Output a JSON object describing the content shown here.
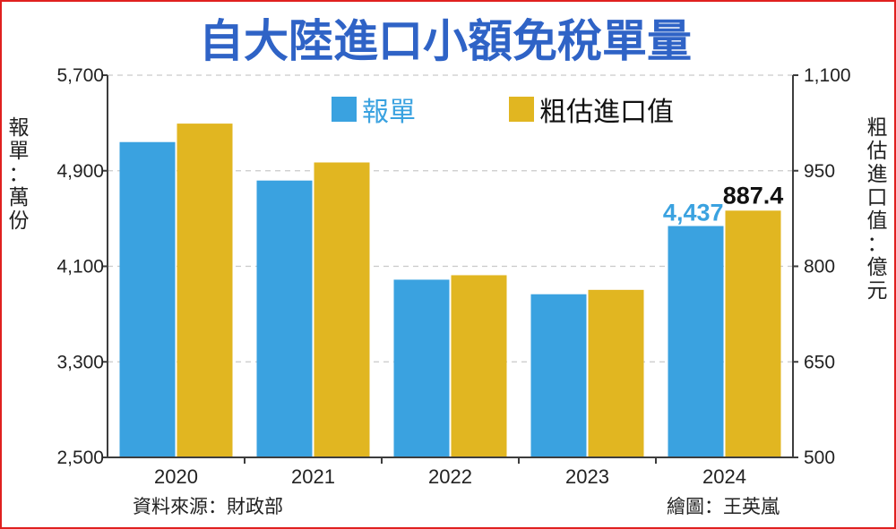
{
  "title": "自大陸進口小額免稅單量",
  "left_axis_label": [
    "報",
    "單",
    "：",
    "萬",
    "份"
  ],
  "right_axis_label": [
    "粗",
    "估",
    "進",
    "口",
    "值",
    "：",
    "億",
    "元"
  ],
  "legend": [
    "報單",
    "粗估進口值"
  ],
  "source": "資料來源：財政部",
  "credit": "繪圖：王英嵐",
  "colors": {
    "blue": "#3aa2e0",
    "gold": "#e1b621",
    "title": "#2f63c6",
    "frame": "#e0201f",
    "axis": "#3d3d3d",
    "grid": "#c9c9c9"
  },
  "chart_data": {
    "type": "bar",
    "categories": [
      "2020",
      "2021",
      "2022",
      "2023",
      "2024"
    ],
    "series": [
      {
        "name": "報單",
        "axis": "left",
        "values": [
          5140,
          4818,
          3988,
          3866,
          4437
        ],
        "unit": "萬份"
      },
      {
        "name": "粗估進口值",
        "axis": "right",
        "values": [
          1024,
          963,
          786,
          763,
          887.4
        ],
        "unit": "億元"
      }
    ],
    "left_axis": {
      "ylim": [
        2500,
        5700
      ],
      "ticks": [
        "2,500",
        "3,300",
        "4,100",
        "4,900",
        "5,700"
      ]
    },
    "right_axis": {
      "ylim": [
        500,
        1100
      ],
      "ticks": [
        "500",
        "650",
        "800",
        "950",
        "1,100"
      ]
    },
    "data_labels": [
      {
        "series": 0,
        "index": 4,
        "text": "4,437"
      },
      {
        "series": 1,
        "index": 4,
        "text": "887.4"
      }
    ],
    "grid": true,
    "legend_position": "top-center"
  }
}
